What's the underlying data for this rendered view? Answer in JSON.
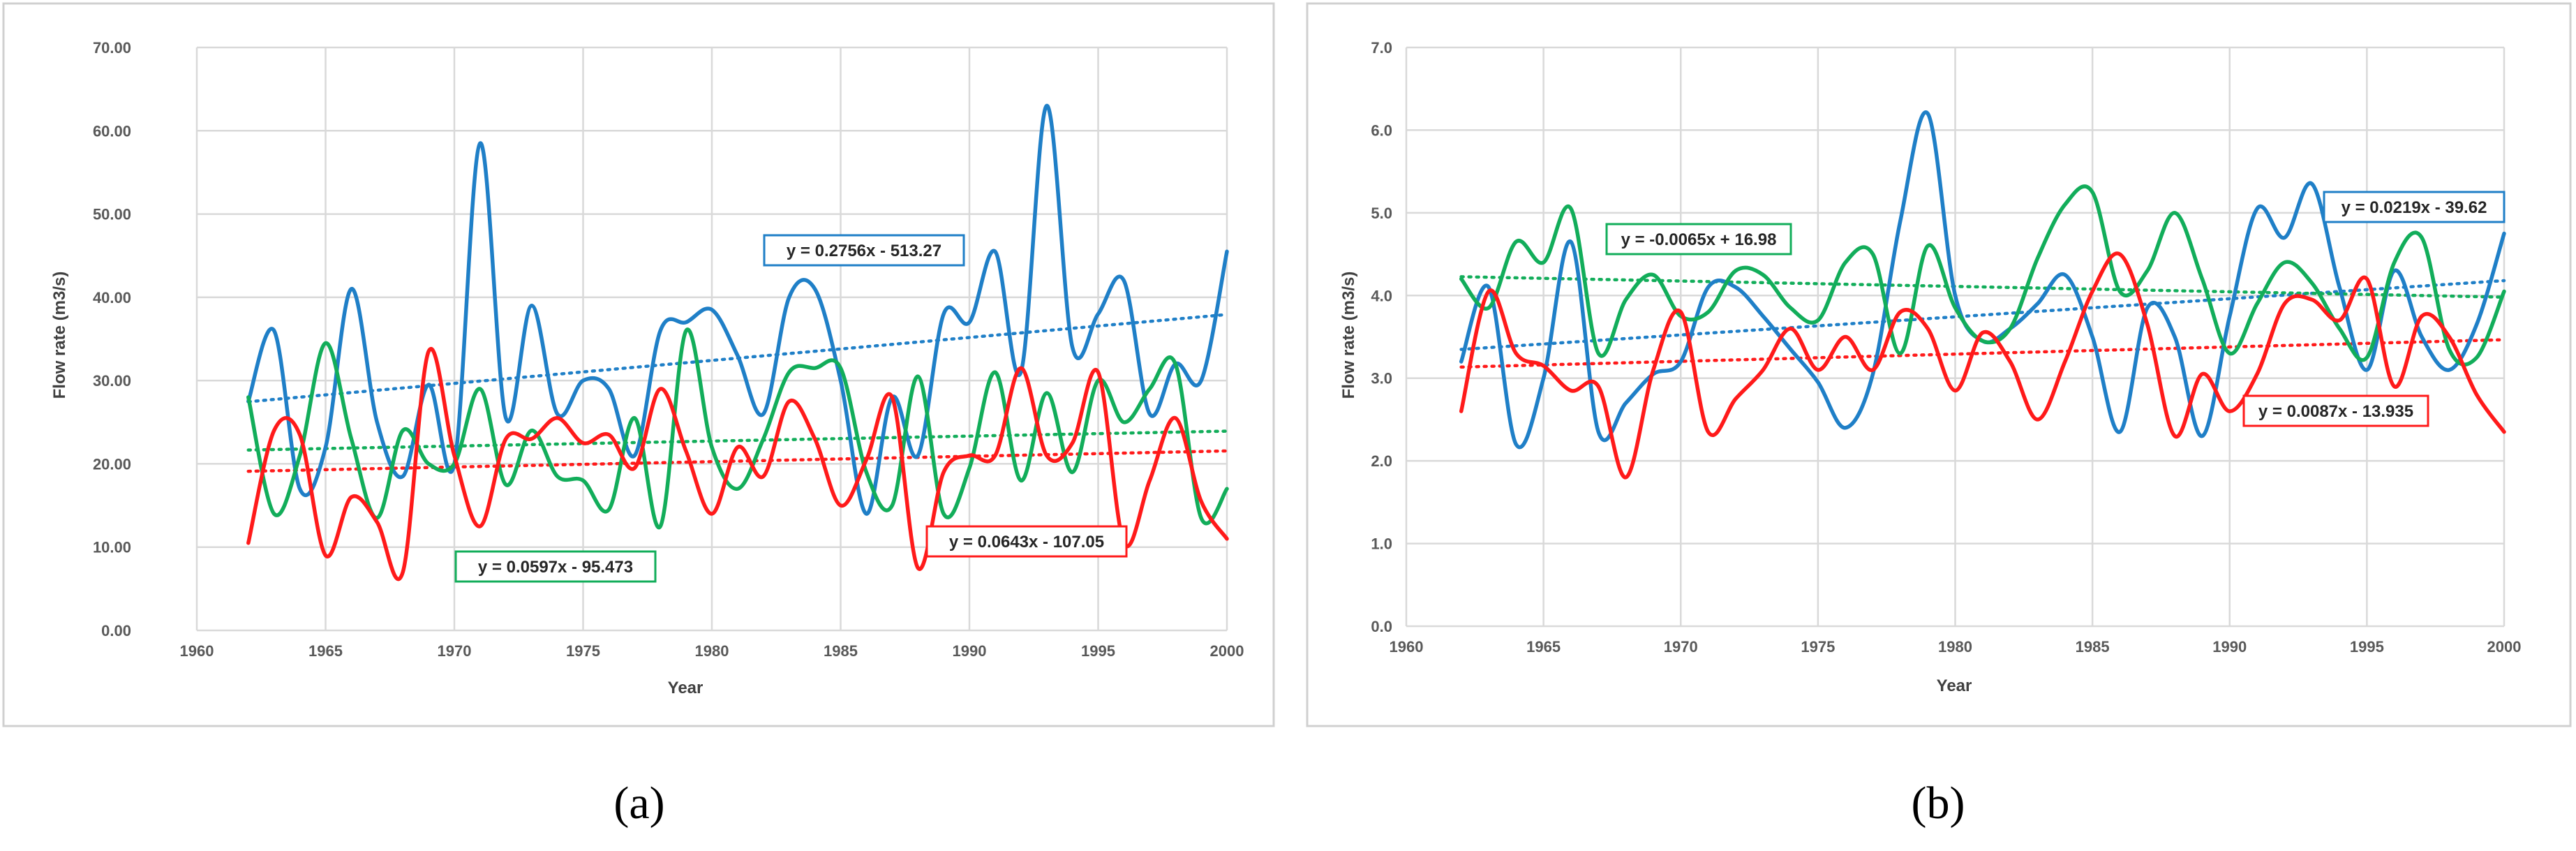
{
  "colors": {
    "blue": "#1f7fc7",
    "green": "#12ad5a",
    "red": "#ff1a1a"
  },
  "captions": {
    "a": "(a)",
    "b": "(b)"
  },
  "chart_data": [
    {
      "type": "line",
      "panel_label": "(a)",
      "xlabel": "Year",
      "ylabel": "Flow rate (m3/s)",
      "xlim": [
        1960,
        2000
      ],
      "ylim": [
        0,
        70
      ],
      "xticks": [
        1960,
        1965,
        1970,
        1975,
        1980,
        1985,
        1990,
        1995,
        2000
      ],
      "yticks": [
        "0.00",
        "10.00",
        "20.00",
        "30.00",
        "40.00",
        "50.00",
        "60.00",
        "70.00"
      ],
      "x": [
        1962,
        1963,
        1964,
        1965,
        1966,
        1967,
        1968,
        1969,
        1970,
        1971,
        1972,
        1973,
        1974,
        1975,
        1976,
        1977,
        1978,
        1979,
        1980,
        1981,
        1982,
        1983,
        1984,
        1985,
        1986,
        1987,
        1988,
        1989,
        1990,
        1991,
        1992,
        1993,
        1994,
        1995,
        1996,
        1997,
        1998,
        1999,
        2000
      ],
      "series": [
        {
          "name": "blue",
          "color": "#1f7fc7",
          "values": [
            27.5,
            36,
            17,
            22,
            41,
            25,
            18.5,
            29.5,
            20,
            58.5,
            25.5,
            39,
            26,
            30,
            29,
            21,
            36,
            37,
            38.5,
            33,
            26,
            40,
            41,
            30,
            14,
            28,
            21,
            38,
            37,
            45.5,
            31,
            63,
            34,
            38,
            42,
            26,
            32,
            30,
            45.5
          ],
          "trend": {
            "equation": "y = 0.2756x - 513.27",
            "slope": 0.2756,
            "intercept": -513.27
          }
        },
        {
          "name": "green",
          "color": "#12ad5a",
          "values": [
            28,
            14,
            21,
            34.5,
            23,
            13.5,
            24,
            20,
            20,
            29,
            17.5,
            24,
            18.5,
            18,
            14.5,
            25.5,
            12.5,
            36,
            22,
            17,
            23,
            31,
            31.5,
            31.5,
            19,
            15,
            30.5,
            14,
            19.5,
            31,
            18,
            28.5,
            19,
            30,
            25,
            29,
            32,
            13.5,
            17
          ],
          "trend": {
            "equation": "y = 0.0597x - 95.473",
            "slope": 0.0597,
            "intercept": -95.473
          }
        },
        {
          "name": "red",
          "color": "#ff1a1a",
          "values": [
            10.5,
            24,
            23.5,
            9,
            16,
            13,
            7,
            33.5,
            21,
            12.5,
            23,
            23,
            25.5,
            22.5,
            23.5,
            19.5,
            29,
            21.5,
            14,
            22,
            18.5,
            27.5,
            23,
            15,
            20.5,
            28,
            7.5,
            19,
            21,
            21,
            31.5,
            21,
            22.5,
            31,
            10.5,
            18,
            25.5,
            15.5,
            11
          ],
          "trend": {
            "equation": "y = 0.0643x - 107.05",
            "slope": 0.0643,
            "intercept": -107.05
          }
        }
      ]
    },
    {
      "type": "line",
      "panel_label": "(b)",
      "xlabel": "Year",
      "ylabel": "Flow rate (m3/s)",
      "xlim": [
        1960,
        2000
      ],
      "ylim": [
        0,
        7
      ],
      "xticks": [
        1960,
        1965,
        1970,
        1975,
        1980,
        1985,
        1990,
        1995,
        2000
      ],
      "yticks": [
        "0.0",
        "1.0",
        "2.0",
        "3.0",
        "4.0",
        "5.0",
        "6.0",
        "7.0"
      ],
      "x": [
        1962,
        1963,
        1964,
        1965,
        1966,
        1967,
        1968,
        1969,
        1970,
        1971,
        1972,
        1973,
        1974,
        1975,
        1976,
        1977,
        1978,
        1979,
        1980,
        1981,
        1982,
        1983,
        1984,
        1985,
        1986,
        1987,
        1988,
        1989,
        1990,
        1991,
        1992,
        1993,
        1994,
        1995,
        1996,
        1997,
        1998,
        1999,
        2000
      ],
      "series": [
        {
          "name": "blue",
          "color": "#1f7fc7",
          "values": [
            3.2,
            4.1,
            2.2,
            3,
            4.65,
            2.35,
            2.7,
            3.05,
            3.2,
            4.1,
            4.1,
            3.75,
            3.35,
            2.95,
            2.4,
            3.05,
            4.9,
            6.2,
            4,
            3.45,
            3.6,
            3.9,
            4.25,
            3.5,
            2.35,
            3.85,
            3.5,
            2.3,
            3.75,
            5.05,
            4.7,
            5.35,
            4.1,
            3.1,
            4.3,
            3.5,
            3.1,
            3.65,
            4.75
          ],
          "trend": {
            "equation": "y = 0.0219x - 39.62",
            "slope": 0.0219,
            "intercept": -39.62
          }
        },
        {
          "name": "green",
          "color": "#12ad5a",
          "values": [
            4.2,
            3.85,
            4.65,
            4.4,
            5.05,
            3.3,
            3.95,
            4.25,
            3.75,
            3.8,
            4.3,
            4.25,
            3.85,
            3.7,
            4.4,
            4.5,
            3.3,
            4.6,
            3.85,
            3.45,
            3.6,
            4.45,
            5.1,
            5.25,
            4.05,
            4.3,
            5,
            4.2,
            3.3,
            3.9,
            4.4,
            4.15,
            3.6,
            3.25,
            4.4,
            4.7,
            3.35,
            3.25,
            4.05
          ],
          "trend": {
            "equation": "y = -0.0065x + 16.98",
            "slope": -0.0065,
            "intercept": 16.98
          }
        },
        {
          "name": "red",
          "color": "#ff1a1a",
          "values": [
            2.6,
            4.05,
            3.3,
            3.15,
            2.85,
            2.9,
            1.8,
            3.1,
            3.8,
            2.35,
            2.75,
            3.1,
            3.6,
            3.1,
            3.5,
            3.1,
            3.8,
            3.6,
            2.85,
            3.55,
            3.2,
            2.5,
            3.2,
            4.05,
            4.5,
            3.65,
            2.3,
            3.05,
            2.6,
            3.05,
            3.9,
            3.95,
            3.7,
            4.2,
            2.9,
            3.75,
            3.5,
            2.8,
            2.35
          ],
          "trend": {
            "equation": "y = 0.0087x - 13.935",
            "slope": 0.0087,
            "intercept": -13.935
          }
        }
      ]
    }
  ]
}
